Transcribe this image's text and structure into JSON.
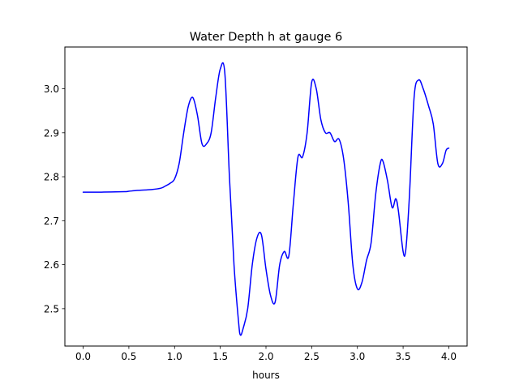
{
  "chart_data": {
    "type": "line",
    "title": "Water Depth h at gauge 6",
    "xlabel": "hours",
    "ylabel": "",
    "xlim": [
      -0.2,
      4.2
    ],
    "ylim": [
      2.415,
      3.095
    ],
    "grid": false,
    "x_ticks": [
      0.0,
      0.5,
      1.0,
      1.5,
      2.0,
      2.5,
      3.0,
      3.5,
      4.0
    ],
    "x_tick_labels": [
      "0.0",
      "0.5",
      "1.0",
      "1.5",
      "2.0",
      "2.5",
      "3.0",
      "3.5",
      "4.0"
    ],
    "y_ticks": [
      2.5,
      2.6,
      2.7,
      2.8,
      2.9,
      3.0
    ],
    "y_tick_labels": [
      "2.5",
      "2.6",
      "2.7",
      "2.8",
      "2.9",
      "3.0"
    ],
    "line_color": "#0000ff",
    "series": [
      {
        "x": [
          0.0,
          0.2,
          0.45,
          0.5,
          0.6,
          0.75,
          0.85,
          0.9,
          0.95,
          1.0,
          1.05,
          1.1,
          1.15,
          1.2,
          1.25,
          1.3,
          1.35,
          1.4,
          1.45,
          1.5,
          1.55,
          1.6,
          1.65,
          1.7,
          1.72,
          1.75,
          1.8,
          1.85,
          1.9,
          1.95,
          2.0,
          2.05,
          2.1,
          2.15,
          2.2,
          2.25,
          2.3,
          2.35,
          2.4,
          2.45,
          2.5,
          2.55,
          2.6,
          2.65,
          2.7,
          2.75,
          2.8,
          2.85,
          2.9,
          2.95,
          3.0,
          3.05,
          3.1,
          3.15,
          3.2,
          3.25,
          3.28,
          3.33,
          3.38,
          3.42,
          3.45,
          3.5,
          3.53,
          3.57,
          3.62,
          3.67,
          3.72,
          3.78,
          3.83,
          3.88,
          3.93,
          3.97,
          4.0
        ],
        "y": [
          2.765,
          2.765,
          2.766,
          2.767,
          2.769,
          2.771,
          2.774,
          2.779,
          2.785,
          2.795,
          2.83,
          2.9,
          2.96,
          2.98,
          2.94,
          2.875,
          2.875,
          2.9,
          2.98,
          3.045,
          3.035,
          2.8,
          2.6,
          2.47,
          2.44,
          2.455,
          2.5,
          2.6,
          2.66,
          2.668,
          2.59,
          2.53,
          2.515,
          2.6,
          2.63,
          2.62,
          2.74,
          2.845,
          2.845,
          2.9,
          3.015,
          3.0,
          2.93,
          2.9,
          2.9,
          2.88,
          2.885,
          2.84,
          2.74,
          2.6,
          2.545,
          2.56,
          2.61,
          2.65,
          2.76,
          2.83,
          2.835,
          2.79,
          2.73,
          2.75,
          2.72,
          2.63,
          2.635,
          2.76,
          2.98,
          3.02,
          3.0,
          2.96,
          2.92,
          2.83,
          2.83,
          2.86,
          2.865
        ]
      }
    ]
  }
}
